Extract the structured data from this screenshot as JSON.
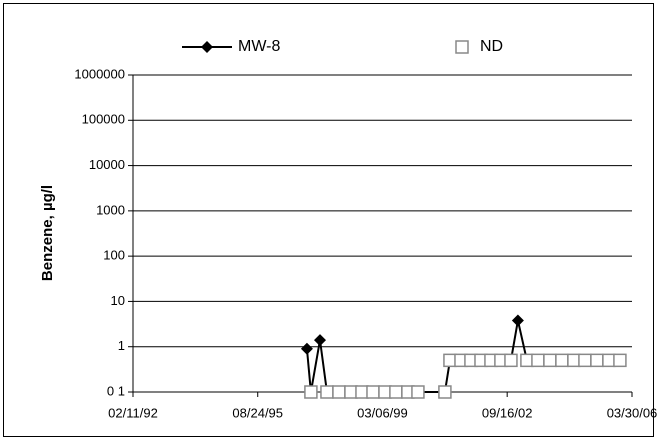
{
  "chart_data": {
    "type": "line",
    "log_y": true,
    "grid": true,
    "y_label": "Benzene, µg/l",
    "xlim": [
      "1992-02-11",
      "2006-03-30"
    ],
    "xticks": [
      {
        "value": "1992-02-11",
        "label": "02/11/92"
      },
      {
        "value": "1995-08-24",
        "label": "08/24/95"
      },
      {
        "value": "1999-03-06",
        "label": "03/06/99"
      },
      {
        "value": "2002-09-16",
        "label": "09/16/02"
      },
      {
        "value": "2006-03-30",
        "label": "03/30/06"
      }
    ],
    "ylim": [
      0.1,
      1000000
    ],
    "yticks": [
      {
        "value": 0.1,
        "label": "0 1"
      },
      1,
      10,
      100,
      1000,
      10000,
      100000,
      1000000
    ],
    "series": [
      {
        "name": "MW-8",
        "color": "#000000",
        "marker": "diamond",
        "x": [
          "1997-01-14",
          "1997-02-24",
          "1997-05-29",
          "1997-08-09",
          "1997-12-11",
          "1998-04-14",
          "1998-08-06",
          "1998-11-28",
          "1999-04-01",
          "1999-07-23",
          "1999-11-24",
          "2000-03-07",
          "2000-12-11",
          "2001-02-01",
          "2001-05-26",
          "2001-09-06",
          "2001-12-19",
          "2002-04-01",
          "2002-07-13",
          "2002-10-25",
          "2003-01-05",
          "2003-04-08",
          "2003-07-31",
          "2003-12-02",
          "2004-04-04",
          "2004-08-06",
          "2004-11-28",
          "2005-04-01",
          "2005-08-03",
          "2005-11-25"
        ],
        "values": [
          0.9,
          0.1,
          1.4,
          0.1,
          0.1,
          0.1,
          0.1,
          0.1,
          0.1,
          0.1,
          0.1,
          0.1,
          0.1,
          0.5,
          0.5,
          0.5,
          0.5,
          0.5,
          0.5,
          0.5,
          3.8,
          0.5,
          0.5,
          0.5,
          0.5,
          0.5,
          0.5,
          0.5,
          0.5,
          0.5
        ]
      },
      {
        "name": "ND",
        "color": "#888888",
        "marker": "square",
        "x": [
          "1997-02-24",
          "1997-08-09",
          "1997-12-11",
          "1998-04-14",
          "1998-08-06",
          "1998-11-28",
          "1999-04-01",
          "1999-07-23",
          "1999-11-24",
          "2000-03-07",
          "2000-12-11",
          "2001-02-01",
          "2001-05-26",
          "2001-09-06",
          "2001-12-19",
          "2002-04-01",
          "2002-07-13",
          "2002-10-25",
          "2003-04-08",
          "2003-07-31",
          "2003-12-02",
          "2004-04-04",
          "2004-08-06",
          "2004-11-28",
          "2005-04-01",
          "2005-08-03",
          "2005-11-25"
        ],
        "values": [
          0.1,
          0.1,
          0.1,
          0.1,
          0.1,
          0.1,
          0.1,
          0.1,
          0.1,
          0.1,
          0.1,
          0.5,
          0.5,
          0.5,
          0.5,
          0.5,
          0.5,
          0.5,
          0.5,
          0.5,
          0.5,
          0.5,
          0.5,
          0.5,
          0.5,
          0.5,
          0.5
        ]
      }
    ]
  }
}
